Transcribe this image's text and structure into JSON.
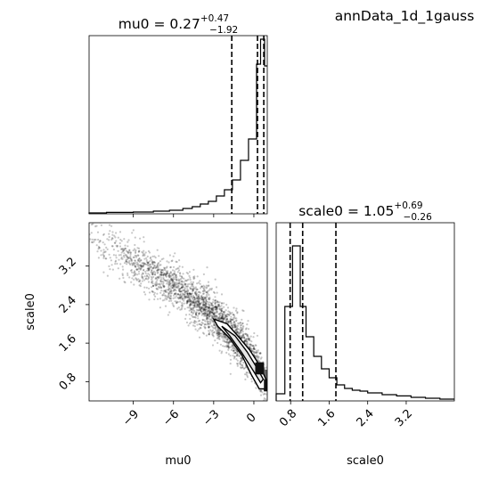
{
  "figure": {
    "suptitle": "annData_1d_1gauss"
  },
  "chart_data": [
    {
      "type": "histogram",
      "panel": "top-left",
      "title": "mu0 = 0.27",
      "title_main": "mu0 = 0.27",
      "title_sup": "+0.47",
      "title_sub": "−1.92",
      "xlim": [
        -12.3,
        1.0
      ],
      "quantile_lines": [
        -1.65,
        0.27,
        0.74
      ],
      "bins": [
        {
          "x0": -12.3,
          "x1": -11.0,
          "h": 0.005
        },
        {
          "x0": -11.0,
          "x1": -9.0,
          "h": 0.008
        },
        {
          "x0": -9.0,
          "x1": -7.5,
          "h": 0.01
        },
        {
          "x0": -7.5,
          "x1": -6.3,
          "h": 0.015
        },
        {
          "x0": -6.3,
          "x1": -5.3,
          "h": 0.02
        },
        {
          "x0": -5.3,
          "x1": -4.6,
          "h": 0.03
        },
        {
          "x0": -4.6,
          "x1": -4.0,
          "h": 0.04
        },
        {
          "x0": -4.0,
          "x1": -3.4,
          "h": 0.055
        },
        {
          "x0": -3.4,
          "x1": -2.8,
          "h": 0.07
        },
        {
          "x0": -2.8,
          "x1": -2.2,
          "h": 0.1
        },
        {
          "x0": -2.2,
          "x1": -1.6,
          "h": 0.135
        },
        {
          "x0": -1.6,
          "x1": -1.0,
          "h": 0.19
        },
        {
          "x0": -1.0,
          "x1": -0.4,
          "h": 0.3
        },
        {
          "x0": -0.4,
          "x1": 0.2,
          "h": 0.42
        },
        {
          "x0": 0.2,
          "x1": 0.5,
          "h": 0.84
        },
        {
          "x0": 0.5,
          "x1": 0.8,
          "h": 0.98
        },
        {
          "x0": 0.8,
          "x1": 1.0,
          "h": 0.83
        }
      ]
    },
    {
      "type": "histogram",
      "panel": "bottom-right",
      "title": "scale0 = 1.05",
      "title_main": "scale0 = 1.05",
      "title_sup": "+0.69",
      "title_sub": "−0.26",
      "xlabel": "scale0",
      "xlim": [
        0.5,
        4.2
      ],
      "xticks": [
        0.8,
        1.6,
        2.4,
        3.2
      ],
      "xtick_labels": [
        "0.8",
        "1.6",
        "2.4",
        "3.2"
      ],
      "quantile_lines": [
        0.79,
        1.05,
        1.74
      ],
      "bins": [
        {
          "x0": 0.5,
          "x1": 0.68,
          "h": 0.04
        },
        {
          "x0": 0.68,
          "x1": 0.84,
          "h": 0.53
        },
        {
          "x0": 0.84,
          "x1": 1.0,
          "h": 0.87
        },
        {
          "x0": 1.0,
          "x1": 1.12,
          "h": 0.53
        },
        {
          "x0": 1.12,
          "x1": 1.28,
          "h": 0.36
        },
        {
          "x0": 1.28,
          "x1": 1.44,
          "h": 0.25
        },
        {
          "x0": 1.44,
          "x1": 1.6,
          "h": 0.18
        },
        {
          "x0": 1.6,
          "x1": 1.76,
          "h": 0.13
        },
        {
          "x0": 1.76,
          "x1": 1.92,
          "h": 0.09
        },
        {
          "x0": 1.92,
          "x1": 2.08,
          "h": 0.07
        },
        {
          "x0": 2.08,
          "x1": 2.24,
          "h": 0.06
        },
        {
          "x0": 2.24,
          "x1": 2.4,
          "h": 0.055
        },
        {
          "x0": 2.4,
          "x1": 2.7,
          "h": 0.045
        },
        {
          "x0": 2.7,
          "x1": 3.0,
          "h": 0.035
        },
        {
          "x0": 3.0,
          "x1": 3.3,
          "h": 0.028
        },
        {
          "x0": 3.3,
          "x1": 3.6,
          "h": 0.02
        },
        {
          "x0": 3.6,
          "x1": 3.9,
          "h": 0.015
        },
        {
          "x0": 3.9,
          "x1": 4.2,
          "h": 0.01
        }
      ]
    },
    {
      "type": "scatter",
      "panel": "bottom-left",
      "xlabel": "mu0",
      "ylabel": "scale0",
      "xlim": [
        -12.3,
        1.0
      ],
      "ylim": [
        0.4,
        4.1
      ],
      "xticks": [
        -9,
        -6,
        -3,
        0
      ],
      "xtick_labels": [
        "−9",
        "−6",
        "−3",
        "0"
      ],
      "yticks": [
        0.8,
        1.6,
        2.4,
        3.2
      ],
      "ytick_labels": [
        "0.8",
        "1.6",
        "2.4",
        "3.2"
      ],
      "relation": {
        "y_at_x": [
          [
            -12,
            3.75
          ],
          [
            -9,
            3.3
          ],
          [
            -6,
            2.8
          ],
          [
            -3,
            2.2
          ],
          [
            -1,
            1.6
          ],
          [
            0.3,
            1.05
          ],
          [
            0.8,
            0.8
          ]
        ]
      },
      "contour_outer": [
        [
          -3.0,
          2.1
        ],
        [
          -2.0,
          2.0
        ],
        [
          -1.2,
          1.75
        ],
        [
          -0.3,
          1.45
        ],
        [
          0.4,
          1.15
        ],
        [
          0.9,
          0.85
        ],
        [
          1.0,
          0.65
        ],
        [
          0.4,
          0.65
        ],
        [
          -0.2,
          0.95
        ],
        [
          -0.9,
          1.35
        ],
        [
          -1.8,
          1.7
        ],
        [
          -2.7,
          1.95
        ]
      ],
      "contour_inner": [
        [
          -2.4,
          1.95
        ],
        [
          -1.4,
          1.75
        ],
        [
          -0.5,
          1.42
        ],
        [
          0.2,
          1.1
        ],
        [
          0.7,
          0.85
        ],
        [
          0.5,
          0.78
        ],
        [
          -0.1,
          1.05
        ],
        [
          -0.9,
          1.4
        ],
        [
          -1.8,
          1.75
        ]
      ],
      "dense_cells": [
        {
          "x0": 0.1,
          "x1": 0.75,
          "y0": 0.95,
          "y1": 1.2,
          "level": 0.95
        },
        {
          "x0": 0.75,
          "x1": 1.0,
          "y0": 0.6,
          "y1": 0.85,
          "level": 0.95
        },
        {
          "x0": 0.75,
          "x1": 1.0,
          "y0": 0.85,
          "y1": 1.05,
          "level": 0.6
        },
        {
          "x0": 0.1,
          "x1": 0.75,
          "y0": 0.75,
          "y1": 0.95,
          "level": 0.25
        }
      ]
    }
  ],
  "colors": {
    "ink": "#000000",
    "background": "#ffffff"
  }
}
